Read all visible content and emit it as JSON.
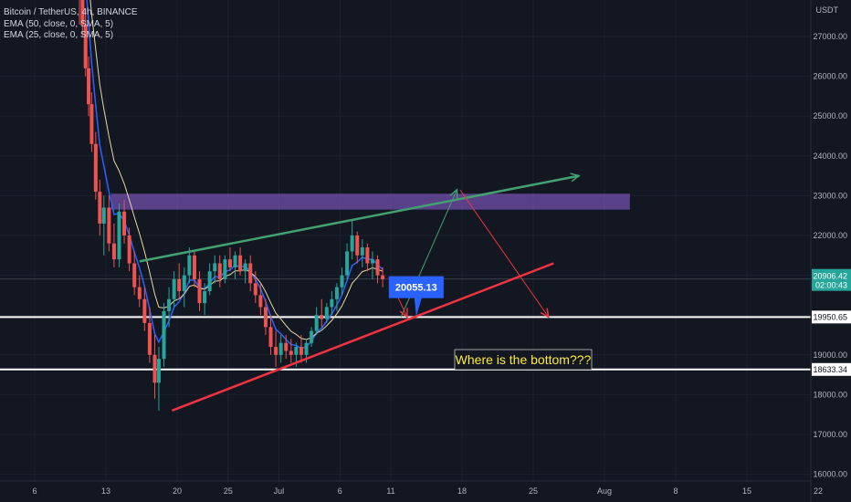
{
  "legend": {
    "symbol": "Bitcoin / TetherUS, 4h, BINANCE",
    "ema1": "EMA (50, close, 0, SMA, 5)",
    "ema2": "EMA (25, close, 0, SMA, 5)"
  },
  "price_axis_unit": "USDT",
  "colors": {
    "background": "#131722",
    "up": "#26a69a",
    "down": "#ef5350",
    "ema50": "#2962ff",
    "ema25": "#e8d9a0",
    "zone": "#7e57c2",
    "support_line": "#ffffff",
    "green_annotation": "#43a070",
    "red_annotation": "#ef3340",
    "callout": "#2962ff",
    "note_text": "#ffeb3b"
  },
  "chart_data": {
    "type": "candlestick",
    "y_range": [
      16000,
      28000
    ],
    "y_ticks": [
      16000,
      17000,
      18000,
      19000,
      20000,
      21000,
      22000,
      23000,
      24000,
      25000,
      26000,
      27000
    ],
    "y_tick_labels": [
      "16000.00",
      "17000.00",
      "18000.00",
      "19000.00",
      "20000.00",
      "21000.00",
      "22000.00",
      "23000.00",
      "24000.00",
      "25000.00",
      "26000.00",
      "27000.00"
    ],
    "x_ticks": [
      6,
      13,
      20,
      25,
      30,
      36,
      41,
      48,
      55,
      62,
      69,
      76,
      83
    ],
    "x_tick_labels": [
      "6",
      "13",
      "20",
      "25",
      "Jul",
      "6",
      "11",
      "18",
      "25",
      "Aug",
      "8",
      "15",
      "22"
    ],
    "x_unit": "days since Jun 1",
    "current_price": "20906.42",
    "countdown": "02:00:43",
    "price_labels": [
      {
        "value": 19950.65,
        "label": "19950.65"
      },
      {
        "value": 18633.34,
        "label": "18633.34"
      }
    ],
    "horizontal_lines": [
      19950.65,
      18633.34
    ],
    "resistance_zone": {
      "x_from": 13.5,
      "x_to": 64.5,
      "y_from": 22650,
      "y_to": 23050
    },
    "trend_lines": [
      {
        "name": "green-upper",
        "points": [
          [
            16.3,
            21350
          ],
          [
            59.5,
            23500
          ]
        ]
      },
      {
        "name": "red-lower",
        "points": [
          [
            19.5,
            17600
          ],
          [
            57.0,
            21300
          ]
        ]
      }
    ],
    "scenario_paths": [
      {
        "name": "green-path",
        "points": [
          [
            42.0,
            19950
          ],
          [
            47.5,
            23150
          ]
        ]
      },
      {
        "name": "red-path",
        "points": [
          [
            47.8,
            23150
          ],
          [
            56.5,
            19950
          ]
        ]
      },
      {
        "name": "red-drop",
        "points": [
          [
            40.8,
            20950
          ],
          [
            42.6,
            19950
          ]
        ]
      }
    ],
    "callout": {
      "label": "20055.13",
      "x": 43.5,
      "y": 20700
    },
    "note": "Where is the bottom???",
    "candles_ohlc_summary": [
      {
        "x": 10.7,
        "o": 28500,
        "h": 28800,
        "l": 27000,
        "c": 27300
      },
      {
        "x": 11.0,
        "o": 27300,
        "h": 27700,
        "l": 26000,
        "c": 26200
      },
      {
        "x": 11.3,
        "o": 26200,
        "h": 26500,
        "l": 25000,
        "c": 25300
      },
      {
        "x": 11.6,
        "o": 25300,
        "h": 25600,
        "l": 24100,
        "c": 24300
      },
      {
        "x": 12.0,
        "o": 24300,
        "h": 24600,
        "l": 22900,
        "c": 23100
      },
      {
        "x": 12.4,
        "o": 23100,
        "h": 23400,
        "l": 22000,
        "c": 22300
      },
      {
        "x": 12.8,
        "o": 22300,
        "h": 23000,
        "l": 21500,
        "c": 22700
      },
      {
        "x": 13.3,
        "o": 22700,
        "h": 23000,
        "l": 21600,
        "c": 21800
      },
      {
        "x": 13.8,
        "o": 21800,
        "h": 22300,
        "l": 21200,
        "c": 21400
      },
      {
        "x": 14.3,
        "o": 21400,
        "h": 22800,
        "l": 21200,
        "c": 22600
      },
      {
        "x": 14.8,
        "o": 22600,
        "h": 22900,
        "l": 21800,
        "c": 22000
      },
      {
        "x": 15.3,
        "o": 22000,
        "h": 22200,
        "l": 21100,
        "c": 21300
      },
      {
        "x": 15.8,
        "o": 21300,
        "h": 21600,
        "l": 20500,
        "c": 20700
      },
      {
        "x": 16.3,
        "o": 20700,
        "h": 21000,
        "l": 20200,
        "c": 20400
      },
      {
        "x": 16.8,
        "o": 20400,
        "h": 20700,
        "l": 19600,
        "c": 19800
      },
      {
        "x": 17.3,
        "o": 19800,
        "h": 20200,
        "l": 18800,
        "c": 19000
      },
      {
        "x": 17.8,
        "o": 19000,
        "h": 19500,
        "l": 17900,
        "c": 18300
      },
      {
        "x": 18.2,
        "o": 18300,
        "h": 19200,
        "l": 17600,
        "c": 18900
      },
      {
        "x": 18.7,
        "o": 18900,
        "h": 20300,
        "l": 18700,
        "c": 20100
      },
      {
        "x": 19.2,
        "o": 20100,
        "h": 20700,
        "l": 19700,
        "c": 20400
      },
      {
        "x": 19.7,
        "o": 20400,
        "h": 21100,
        "l": 20200,
        "c": 20900
      },
      {
        "x": 20.2,
        "o": 20900,
        "h": 21300,
        "l": 20400,
        "c": 20600
      },
      {
        "x": 20.7,
        "o": 20600,
        "h": 21200,
        "l": 20200,
        "c": 21000
      },
      {
        "x": 21.2,
        "o": 21000,
        "h": 21700,
        "l": 20800,
        "c": 21500
      },
      {
        "x": 21.7,
        "o": 21500,
        "h": 21600,
        "l": 20700,
        "c": 20900
      },
      {
        "x": 22.2,
        "o": 20900,
        "h": 21100,
        "l": 20100,
        "c": 20300
      },
      {
        "x": 22.7,
        "o": 20300,
        "h": 20800,
        "l": 20000,
        "c": 20600
      },
      {
        "x": 23.2,
        "o": 20600,
        "h": 21300,
        "l": 20500,
        "c": 21100
      },
      {
        "x": 23.7,
        "o": 21100,
        "h": 21500,
        "l": 20800,
        "c": 21300
      },
      {
        "x": 24.2,
        "o": 21300,
        "h": 21500,
        "l": 20700,
        "c": 20900
      },
      {
        "x": 24.7,
        "o": 20900,
        "h": 21500,
        "l": 20800,
        "c": 21400
      },
      {
        "x": 25.2,
        "o": 21400,
        "h": 21700,
        "l": 21100,
        "c": 21200
      },
      {
        "x": 25.7,
        "o": 21200,
        "h": 21600,
        "l": 20900,
        "c": 21500
      },
      {
        "x": 26.2,
        "o": 21500,
        "h": 21700,
        "l": 21000,
        "c": 21100
      },
      {
        "x": 26.7,
        "o": 21100,
        "h": 21400,
        "l": 20800,
        "c": 21300
      },
      {
        "x": 27.2,
        "o": 21300,
        "h": 21500,
        "l": 20600,
        "c": 20800
      },
      {
        "x": 27.7,
        "o": 20800,
        "h": 21100,
        "l": 20300,
        "c": 20500
      },
      {
        "x": 28.2,
        "o": 20500,
        "h": 20800,
        "l": 20000,
        "c": 20200
      },
      {
        "x": 28.7,
        "o": 20200,
        "h": 20400,
        "l": 19500,
        "c": 19700
      },
      {
        "x": 29.2,
        "o": 19700,
        "h": 20000,
        "l": 19000,
        "c": 19200
      },
      {
        "x": 29.7,
        "o": 19200,
        "h": 19600,
        "l": 18700,
        "c": 19000
      },
      {
        "x": 30.2,
        "o": 19000,
        "h": 19500,
        "l": 18800,
        "c": 19300
      },
      {
        "x": 30.7,
        "o": 19300,
        "h": 19500,
        "l": 18900,
        "c": 19100
      },
      {
        "x": 31.2,
        "o": 19100,
        "h": 19400,
        "l": 18800,
        "c": 19000
      },
      {
        "x": 31.7,
        "o": 19000,
        "h": 19300,
        "l": 18700,
        "c": 19200
      },
      {
        "x": 32.2,
        "o": 19200,
        "h": 19500,
        "l": 18800,
        "c": 19000
      },
      {
        "x": 32.7,
        "o": 19000,
        "h": 19400,
        "l": 18800,
        "c": 19300
      },
      {
        "x": 33.2,
        "o": 19300,
        "h": 19700,
        "l": 19200,
        "c": 19600
      },
      {
        "x": 33.7,
        "o": 19600,
        "h": 20200,
        "l": 19500,
        "c": 20000
      },
      {
        "x": 34.2,
        "o": 20000,
        "h": 20400,
        "l": 19700,
        "c": 19900
      },
      {
        "x": 34.7,
        "o": 19900,
        "h": 20300,
        "l": 19800,
        "c": 20200
      },
      {
        "x": 35.2,
        "o": 20200,
        "h": 20600,
        "l": 20000,
        "c": 20400
      },
      {
        "x": 35.7,
        "o": 20400,
        "h": 20800,
        "l": 20100,
        "c": 20700
      },
      {
        "x": 36.2,
        "o": 20700,
        "h": 21200,
        "l": 20500,
        "c": 21000
      },
      {
        "x": 36.7,
        "o": 21000,
        "h": 21800,
        "l": 20900,
        "c": 21600
      },
      {
        "x": 37.2,
        "o": 21600,
        "h": 22400,
        "l": 21400,
        "c": 22000
      },
      {
        "x": 37.7,
        "o": 22000,
        "h": 22100,
        "l": 21300,
        "c": 21500
      },
      {
        "x": 38.2,
        "o": 21500,
        "h": 21900,
        "l": 21200,
        "c": 21700
      },
      {
        "x": 38.7,
        "o": 21700,
        "h": 21800,
        "l": 21100,
        "c": 21300
      },
      {
        "x": 39.2,
        "o": 21300,
        "h": 21600,
        "l": 20900,
        "c": 21400
      },
      {
        "x": 39.7,
        "o": 21400,
        "h": 21500,
        "l": 20800,
        "c": 21000
      },
      {
        "x": 40.2,
        "o": 21000,
        "h": 21200,
        "l": 20700,
        "c": 20900
      }
    ]
  }
}
